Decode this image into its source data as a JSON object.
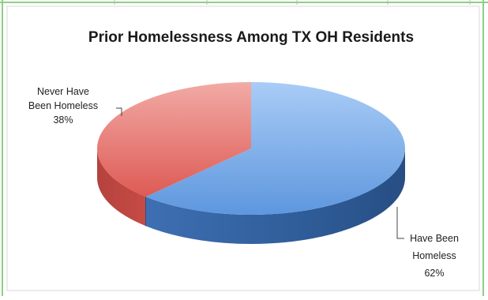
{
  "chart_data": {
    "type": "pie",
    "title": "Prior Homelessness Among TX OH Residents",
    "slices": [
      {
        "label_lines": [
          "Have Been",
          "Homeless"
        ],
        "pct_label": "62%",
        "value": 62,
        "color": "#5b92d6"
      },
      {
        "label_lines": [
          "Never Have",
          "Been Homeless"
        ],
        "pct_label": "38%",
        "value": 38,
        "color": "#de5a54"
      }
    ],
    "style": "3d",
    "legend": "none"
  },
  "colors": {
    "frame_border": "#d9d9d9",
    "sheet_grid_green": "#8fcf86",
    "background": "#ffffff"
  }
}
